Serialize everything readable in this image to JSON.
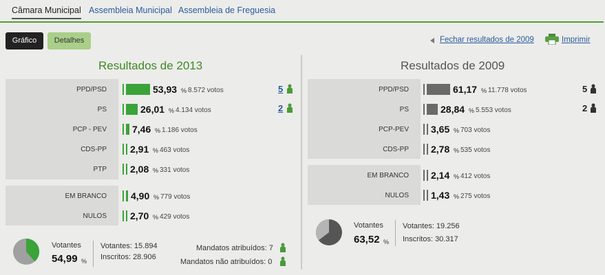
{
  "tabs": [
    {
      "label": "Câmara Municipal"
    },
    {
      "label": "Assembleia Municipal"
    },
    {
      "label": "Assembleia de Freguesia"
    }
  ],
  "buttons": {
    "chart": "Gráfico",
    "details": "Detalhes"
  },
  "links": {
    "close": "Fechar resultados de 2009",
    "print": "Imprimir"
  },
  "colors": {
    "accent": "#4fa12f",
    "bar2013": "#3aa33a",
    "bar2009": "#6a6a6a",
    "link": "#2a5b9d"
  },
  "r2013": {
    "title": "Resultados de 2013",
    "parties": [
      {
        "name": "PPD/PSD",
        "pct": "53,93",
        "votes": "8.572 votos",
        "seats": "5"
      },
      {
        "name": "PS",
        "pct": "26,01",
        "votes": "4.134 votos",
        "seats": "2"
      },
      {
        "name": "PCP - PEV",
        "pct": "7,46",
        "votes": "1.186 votos"
      },
      {
        "name": "CDS-PP",
        "pct": "2,91",
        "votes": "463 votos"
      },
      {
        "name": "PTP",
        "pct": "2,08",
        "votes": "331 votos"
      }
    ],
    "other": [
      {
        "name": "EM BRANCO",
        "pct": "4,90",
        "votes": "779 votos"
      },
      {
        "name": "NULOS",
        "pct": "2,70",
        "votes": "429 votos"
      }
    ],
    "turnout": {
      "label": "Votantes",
      "pct": "54,99",
      "voters": "Votantes: 15.894",
      "registered": "Inscritos: 28.906",
      "assigned": "Mandatos atribuídos: 7",
      "unassigned": "Mandatos não atribuídos: 0"
    }
  },
  "r2009": {
    "title": "Resultados de 2009",
    "parties": [
      {
        "name": "PPD/PSD",
        "pct": "61,17",
        "votes": "11.778 votos",
        "seats": "5"
      },
      {
        "name": "PS",
        "pct": "28,84",
        "votes": "5.553 votos",
        "seats": "2"
      },
      {
        "name": "PCP-PEV",
        "pct": "3,65",
        "votes": "703 votos"
      },
      {
        "name": "CDS-PP",
        "pct": "2,78",
        "votes": "535 votos"
      }
    ],
    "other": [
      {
        "name": "EM BRANCO",
        "pct": "2,14",
        "votes": "412 votos"
      },
      {
        "name": "NULOS",
        "pct": "1,43",
        "votes": "275 votos"
      }
    ],
    "turnout": {
      "label": "Votantes",
      "pct": "63,52",
      "voters": "Votantes: 19.256",
      "registered": "Inscritos: 30.317"
    }
  },
  "icons": [
    "printer-icon",
    "person-icon",
    "arrow-left-icon"
  ]
}
